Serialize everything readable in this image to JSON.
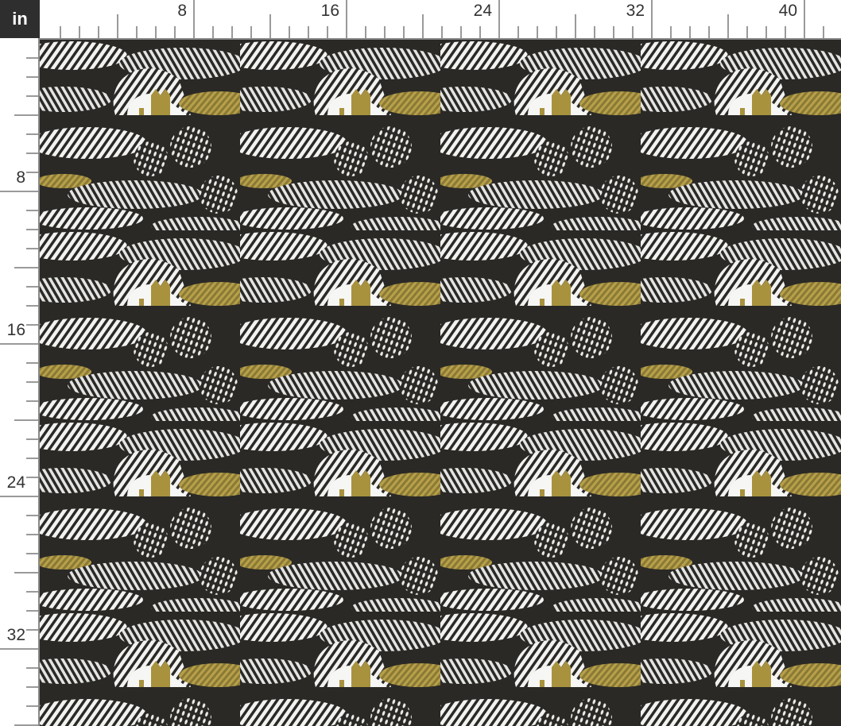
{
  "ruler": {
    "unit": "in",
    "top_labels": [
      "8",
      "16",
      "24",
      "32",
      "40"
    ],
    "left_labels": [
      "8",
      "16",
      "24",
      "32"
    ]
  },
  "colors": {
    "background": "#2a2926",
    "hatch": "#f2f2f0",
    "gold": "#a8923e",
    "ruler_panel": "#2e2e2e"
  },
  "fabric": {
    "pattern": "hatched landscape with trees and gold houses"
  }
}
